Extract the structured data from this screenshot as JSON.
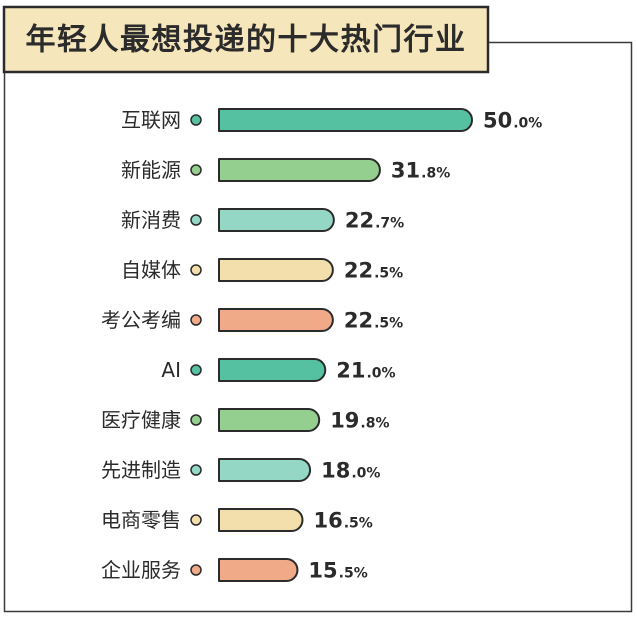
{
  "chart_data": {
    "type": "bar",
    "orientation": "horizontal",
    "title": "年轻人最想投递的十大热门行业",
    "categories": [
      "互联网",
      "新能源",
      "新消费",
      "自媒体",
      "考公考编",
      "AI",
      "医疗健康",
      "先进制造",
      "电商零售",
      "企业服务"
    ],
    "values": [
      50.0,
      31.8,
      22.7,
      22.5,
      22.5,
      21.0,
      19.8,
      18.0,
      16.5,
      15.5
    ],
    "value_suffix": "%",
    "xlim": [
      0,
      50
    ],
    "grid": false,
    "colors": [
      "#55c1a1",
      "#94cf8f",
      "#95d7c5",
      "#f3dfab",
      "#f1aa88",
      "#55c1a1",
      "#94cf8f",
      "#95d7c5",
      "#f3dfab",
      "#f1aa88"
    ]
  },
  "colors": {
    "outline": "#2b2b2b",
    "frame": "#3a3a3a",
    "title_background": "#f5e6bb",
    "text": "#2b2b2b"
  }
}
